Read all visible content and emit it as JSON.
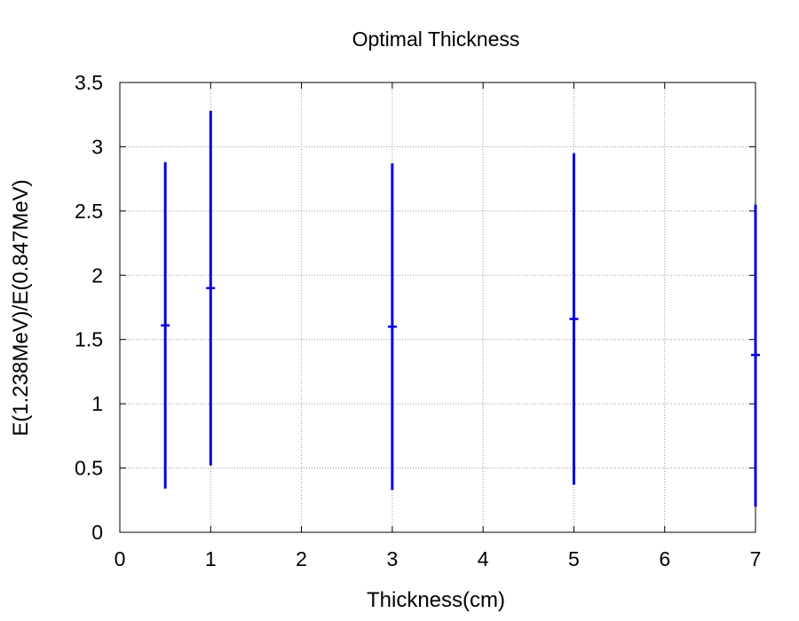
{
  "chart_data": {
    "type": "scatter",
    "title": "Optimal Thickness",
    "xlabel": "Thickness(cm)",
    "ylabel": "E(1.238MeV)/E(0.847MeV)",
    "xlim": [
      0,
      7
    ],
    "ylim": [
      0,
      3.5
    ],
    "xticks": [
      "0",
      "1",
      "2",
      "3",
      "4",
      "5",
      "6",
      "7"
    ],
    "yticks": [
      "0",
      "0.5",
      "1",
      "1.5",
      "2",
      "2.5",
      "3",
      "3.5"
    ],
    "grid": true,
    "legend": "none",
    "series": [
      {
        "style": "error-bars",
        "color": "#0000dd",
        "points": [
          {
            "x": 0.5,
            "y": 1.61,
            "ylow": 0.34,
            "yhigh": 2.88
          },
          {
            "x": 1.0,
            "y": 1.9,
            "ylow": 0.52,
            "yhigh": 3.28
          },
          {
            "x": 3.0,
            "y": 1.6,
            "ylow": 0.33,
            "yhigh": 2.87
          },
          {
            "x": 5.0,
            "y": 1.66,
            "ylow": 0.37,
            "yhigh": 2.95
          },
          {
            "x": 7.0,
            "y": 1.38,
            "ylow": 0.2,
            "yhigh": 2.55
          }
        ]
      }
    ]
  },
  "colors": {
    "series": "#0000dd",
    "grid": "#9a9a9a",
    "frame": "#000000"
  }
}
